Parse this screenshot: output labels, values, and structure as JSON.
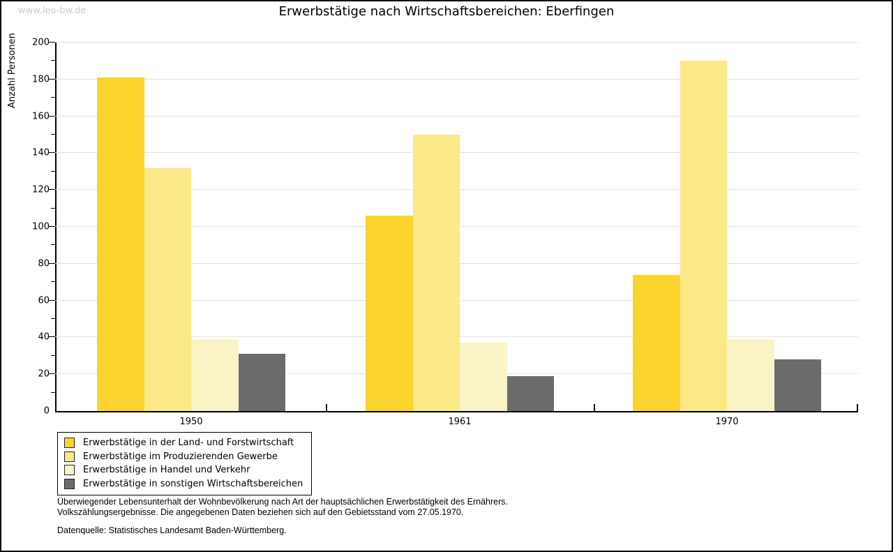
{
  "watermark": "www.leo-bw.de",
  "chart_data": {
    "type": "bar",
    "title": "Erwerbstätige nach Wirtschaftsbereichen: Eberfingen",
    "ylabel": "Anzahl Personen",
    "xlabel": "",
    "categories": [
      "1950",
      "1961",
      "1970"
    ],
    "series": [
      {
        "name": "Erwerbstätige in der Land- und Forstwirtschaft",
        "color": "#FCD32C",
        "values": [
          181,
          106,
          74
        ]
      },
      {
        "name": "Erwerbstätige im Produzierenden Gewerbe",
        "color": "#FBE987",
        "values": [
          132,
          150,
          190
        ]
      },
      {
        "name": "Erwerbstätige in Handel und Verkehr",
        "color": "#FAF3C6",
        "values": [
          39,
          37,
          39
        ]
      },
      {
        "name": "Erwerbstätige in sonstigen Wirtschaftsbereichen",
        "color": "#6B6B6B",
        "values": [
          31,
          19,
          28
        ]
      }
    ],
    "ylim": [
      0,
      200
    ],
    "ytick_step": 20,
    "yminor_step": 10,
    "grid": "horizontal-major-light-gray",
    "legend_position": "bottom-left"
  },
  "footnotes": {
    "line1": "Überwiegender Lebensunterhalt der Wohnbevölkerung nach Art der hauptsächlichen Erwerbstätigkeit des Ernährers.",
    "line2": "Volkszählungsergebnisse. Die angegebenen Daten beziehen sich auf den Gebietsstand vom 27.05.1970.",
    "source": "Datenquelle: Statistisches Landesamt Baden-Württemberg."
  }
}
